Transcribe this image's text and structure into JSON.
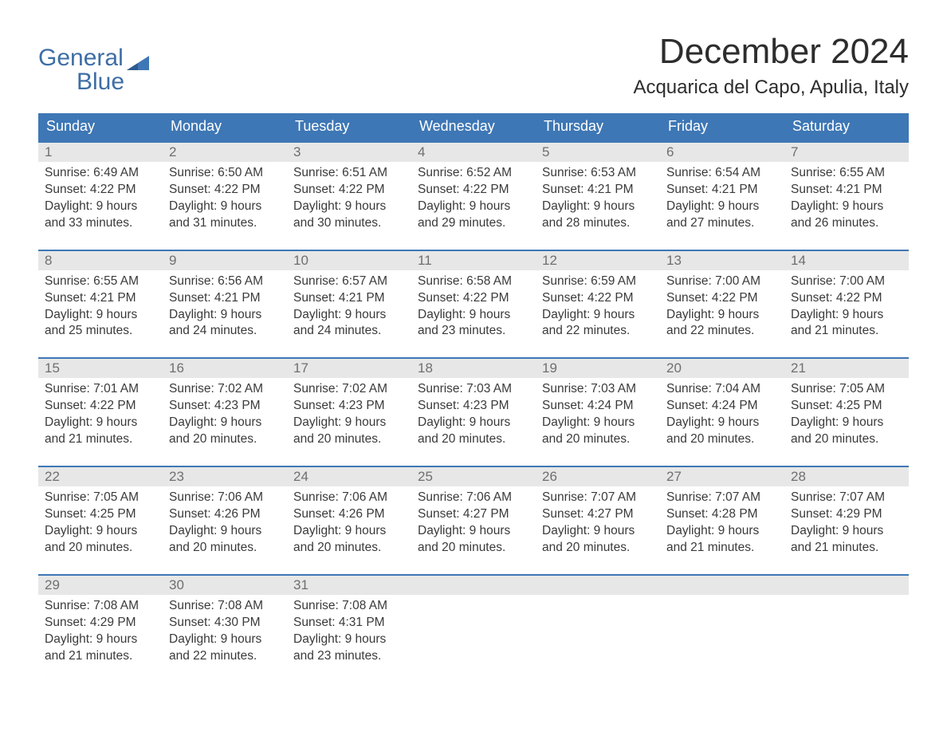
{
  "brand": {
    "line1": "General",
    "line2": "Blue",
    "flag_color": "#3e77b5",
    "text_color": "#3e6ea5"
  },
  "title": "December 2024",
  "location": "Acquarica del Capo, Apulia, Italy",
  "colors": {
    "header_bg": "#3e77b5",
    "header_fg": "#ffffff",
    "daynum_bg": "#e7e7e7",
    "daynum_fg": "#6f6f6f",
    "text": "#3a3a3a",
    "page_bg": "#ffffff",
    "rule": "#3e77b5"
  },
  "typography": {
    "title_fontsize": 44,
    "location_fontsize": 24,
    "dayheader_fontsize": 18,
    "daynum_fontsize": 17,
    "body_fontsize": 15.5,
    "font_family": "Arial"
  },
  "day_names": [
    "Sunday",
    "Monday",
    "Tuesday",
    "Wednesday",
    "Thursday",
    "Friday",
    "Saturday"
  ],
  "weeks": [
    [
      {
        "n": "1",
        "sunrise": "Sunrise: 6:49 AM",
        "sunset": "Sunset: 4:22 PM",
        "d1": "Daylight: 9 hours",
        "d2": "and 33 minutes."
      },
      {
        "n": "2",
        "sunrise": "Sunrise: 6:50 AM",
        "sunset": "Sunset: 4:22 PM",
        "d1": "Daylight: 9 hours",
        "d2": "and 31 minutes."
      },
      {
        "n": "3",
        "sunrise": "Sunrise: 6:51 AM",
        "sunset": "Sunset: 4:22 PM",
        "d1": "Daylight: 9 hours",
        "d2": "and 30 minutes."
      },
      {
        "n": "4",
        "sunrise": "Sunrise: 6:52 AM",
        "sunset": "Sunset: 4:22 PM",
        "d1": "Daylight: 9 hours",
        "d2": "and 29 minutes."
      },
      {
        "n": "5",
        "sunrise": "Sunrise: 6:53 AM",
        "sunset": "Sunset: 4:21 PM",
        "d1": "Daylight: 9 hours",
        "d2": "and 28 minutes."
      },
      {
        "n": "6",
        "sunrise": "Sunrise: 6:54 AM",
        "sunset": "Sunset: 4:21 PM",
        "d1": "Daylight: 9 hours",
        "d2": "and 27 minutes."
      },
      {
        "n": "7",
        "sunrise": "Sunrise: 6:55 AM",
        "sunset": "Sunset: 4:21 PM",
        "d1": "Daylight: 9 hours",
        "d2": "and 26 minutes."
      }
    ],
    [
      {
        "n": "8",
        "sunrise": "Sunrise: 6:55 AM",
        "sunset": "Sunset: 4:21 PM",
        "d1": "Daylight: 9 hours",
        "d2": "and 25 minutes."
      },
      {
        "n": "9",
        "sunrise": "Sunrise: 6:56 AM",
        "sunset": "Sunset: 4:21 PM",
        "d1": "Daylight: 9 hours",
        "d2": "and 24 minutes."
      },
      {
        "n": "10",
        "sunrise": "Sunrise: 6:57 AM",
        "sunset": "Sunset: 4:21 PM",
        "d1": "Daylight: 9 hours",
        "d2": "and 24 minutes."
      },
      {
        "n": "11",
        "sunrise": "Sunrise: 6:58 AM",
        "sunset": "Sunset: 4:22 PM",
        "d1": "Daylight: 9 hours",
        "d2": "and 23 minutes."
      },
      {
        "n": "12",
        "sunrise": "Sunrise: 6:59 AM",
        "sunset": "Sunset: 4:22 PM",
        "d1": "Daylight: 9 hours",
        "d2": "and 22 minutes."
      },
      {
        "n": "13",
        "sunrise": "Sunrise: 7:00 AM",
        "sunset": "Sunset: 4:22 PM",
        "d1": "Daylight: 9 hours",
        "d2": "and 22 minutes."
      },
      {
        "n": "14",
        "sunrise": "Sunrise: 7:00 AM",
        "sunset": "Sunset: 4:22 PM",
        "d1": "Daylight: 9 hours",
        "d2": "and 21 minutes."
      }
    ],
    [
      {
        "n": "15",
        "sunrise": "Sunrise: 7:01 AM",
        "sunset": "Sunset: 4:22 PM",
        "d1": "Daylight: 9 hours",
        "d2": "and 21 minutes."
      },
      {
        "n": "16",
        "sunrise": "Sunrise: 7:02 AM",
        "sunset": "Sunset: 4:23 PM",
        "d1": "Daylight: 9 hours",
        "d2": "and 20 minutes."
      },
      {
        "n": "17",
        "sunrise": "Sunrise: 7:02 AM",
        "sunset": "Sunset: 4:23 PM",
        "d1": "Daylight: 9 hours",
        "d2": "and 20 minutes."
      },
      {
        "n": "18",
        "sunrise": "Sunrise: 7:03 AM",
        "sunset": "Sunset: 4:23 PM",
        "d1": "Daylight: 9 hours",
        "d2": "and 20 minutes."
      },
      {
        "n": "19",
        "sunrise": "Sunrise: 7:03 AM",
        "sunset": "Sunset: 4:24 PM",
        "d1": "Daylight: 9 hours",
        "d2": "and 20 minutes."
      },
      {
        "n": "20",
        "sunrise": "Sunrise: 7:04 AM",
        "sunset": "Sunset: 4:24 PM",
        "d1": "Daylight: 9 hours",
        "d2": "and 20 minutes."
      },
      {
        "n": "21",
        "sunrise": "Sunrise: 7:05 AM",
        "sunset": "Sunset: 4:25 PM",
        "d1": "Daylight: 9 hours",
        "d2": "and 20 minutes."
      }
    ],
    [
      {
        "n": "22",
        "sunrise": "Sunrise: 7:05 AM",
        "sunset": "Sunset: 4:25 PM",
        "d1": "Daylight: 9 hours",
        "d2": "and 20 minutes."
      },
      {
        "n": "23",
        "sunrise": "Sunrise: 7:06 AM",
        "sunset": "Sunset: 4:26 PM",
        "d1": "Daylight: 9 hours",
        "d2": "and 20 minutes."
      },
      {
        "n": "24",
        "sunrise": "Sunrise: 7:06 AM",
        "sunset": "Sunset: 4:26 PM",
        "d1": "Daylight: 9 hours",
        "d2": "and 20 minutes."
      },
      {
        "n": "25",
        "sunrise": "Sunrise: 7:06 AM",
        "sunset": "Sunset: 4:27 PM",
        "d1": "Daylight: 9 hours",
        "d2": "and 20 minutes."
      },
      {
        "n": "26",
        "sunrise": "Sunrise: 7:07 AM",
        "sunset": "Sunset: 4:27 PM",
        "d1": "Daylight: 9 hours",
        "d2": "and 20 minutes."
      },
      {
        "n": "27",
        "sunrise": "Sunrise: 7:07 AM",
        "sunset": "Sunset: 4:28 PM",
        "d1": "Daylight: 9 hours",
        "d2": "and 21 minutes."
      },
      {
        "n": "28",
        "sunrise": "Sunrise: 7:07 AM",
        "sunset": "Sunset: 4:29 PM",
        "d1": "Daylight: 9 hours",
        "d2": "and 21 minutes."
      }
    ],
    [
      {
        "n": "29",
        "sunrise": "Sunrise: 7:08 AM",
        "sunset": "Sunset: 4:29 PM",
        "d1": "Daylight: 9 hours",
        "d2": "and 21 minutes."
      },
      {
        "n": "30",
        "sunrise": "Sunrise: 7:08 AM",
        "sunset": "Sunset: 4:30 PM",
        "d1": "Daylight: 9 hours",
        "d2": "and 22 minutes."
      },
      {
        "n": "31",
        "sunrise": "Sunrise: 7:08 AM",
        "sunset": "Sunset: 4:31 PM",
        "d1": "Daylight: 9 hours",
        "d2": "and 23 minutes."
      },
      null,
      null,
      null,
      null
    ]
  ]
}
